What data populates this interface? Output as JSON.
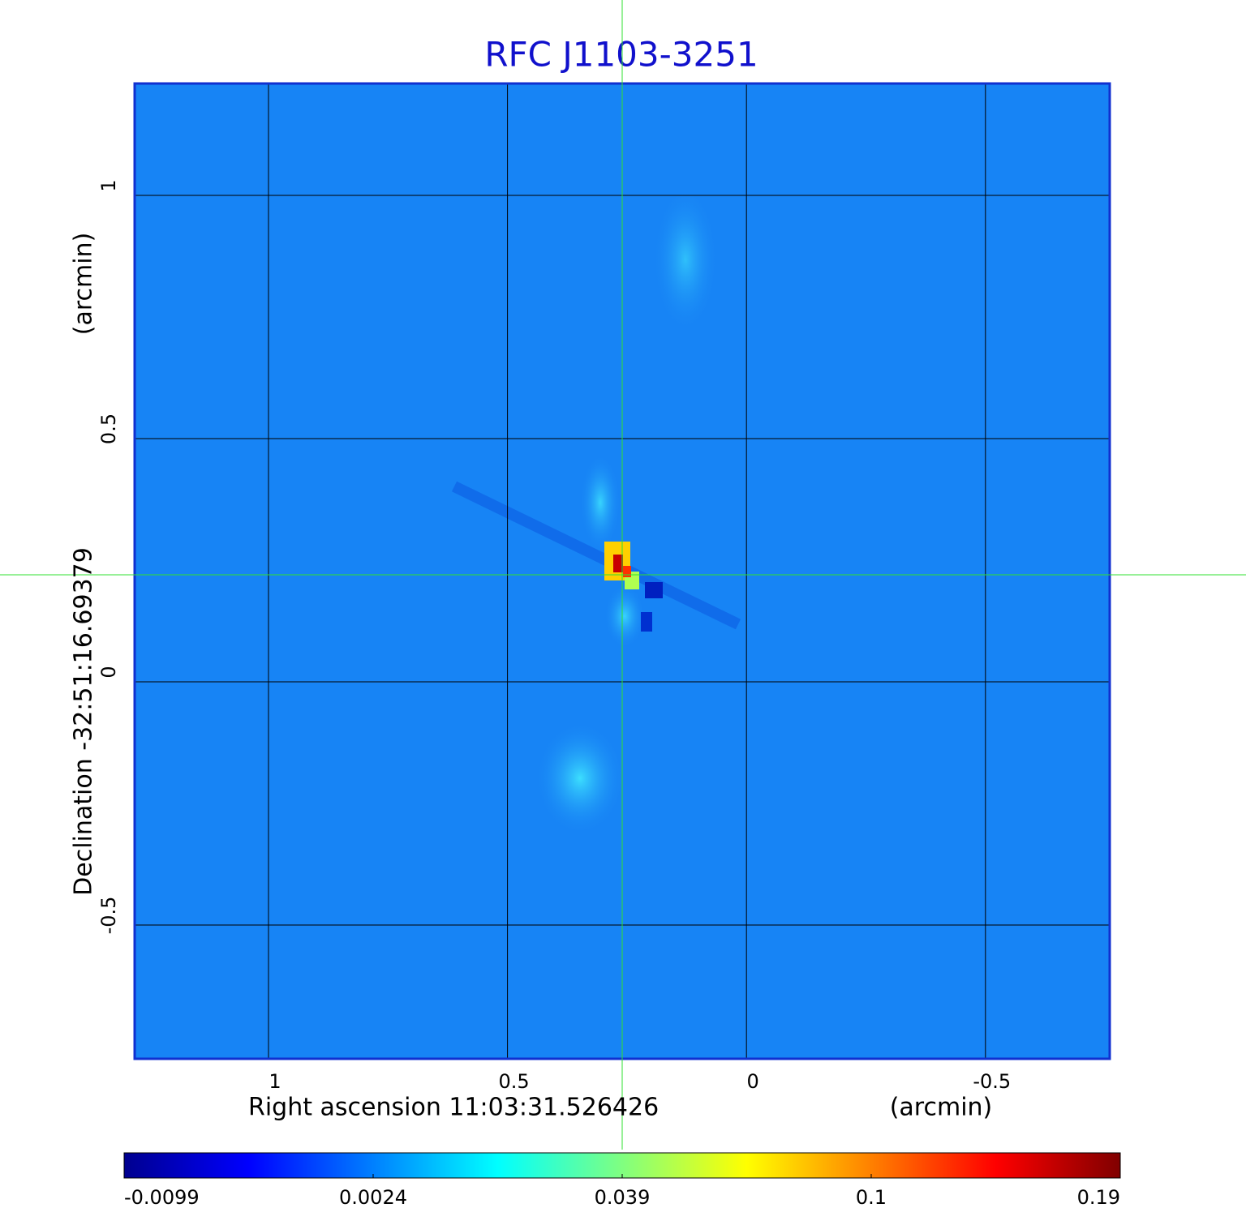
{
  "chart_data": {
    "type": "image",
    "title": "RFC J1103-3251",
    "x_label": "Right ascension  11:03:31.526426",
    "x_unit": "(arcmin)",
    "y_label": "Declination  -32:51:16.69379",
    "y_unit": "(arcmin)",
    "xlim": [
      1.28,
      -0.76
    ],
    "xticks": [
      1.0,
      0.5,
      0.0,
      -0.5
    ],
    "ylim": [
      -0.775,
      1.23
    ],
    "yticks": [
      1.0,
      0.5,
      0.0,
      -0.5
    ],
    "grid": true,
    "colorbar": {
      "ticks": [
        -0.0099,
        0.0024,
        0.039,
        0.1,
        0.19
      ],
      "colors": [
        "#00008f",
        "#0000ff",
        "#0080ff",
        "#00ffff",
        "#80ff80",
        "#ffff00",
        "#ff8000",
        "#ff0000",
        "#800000"
      ]
    }
  }
}
